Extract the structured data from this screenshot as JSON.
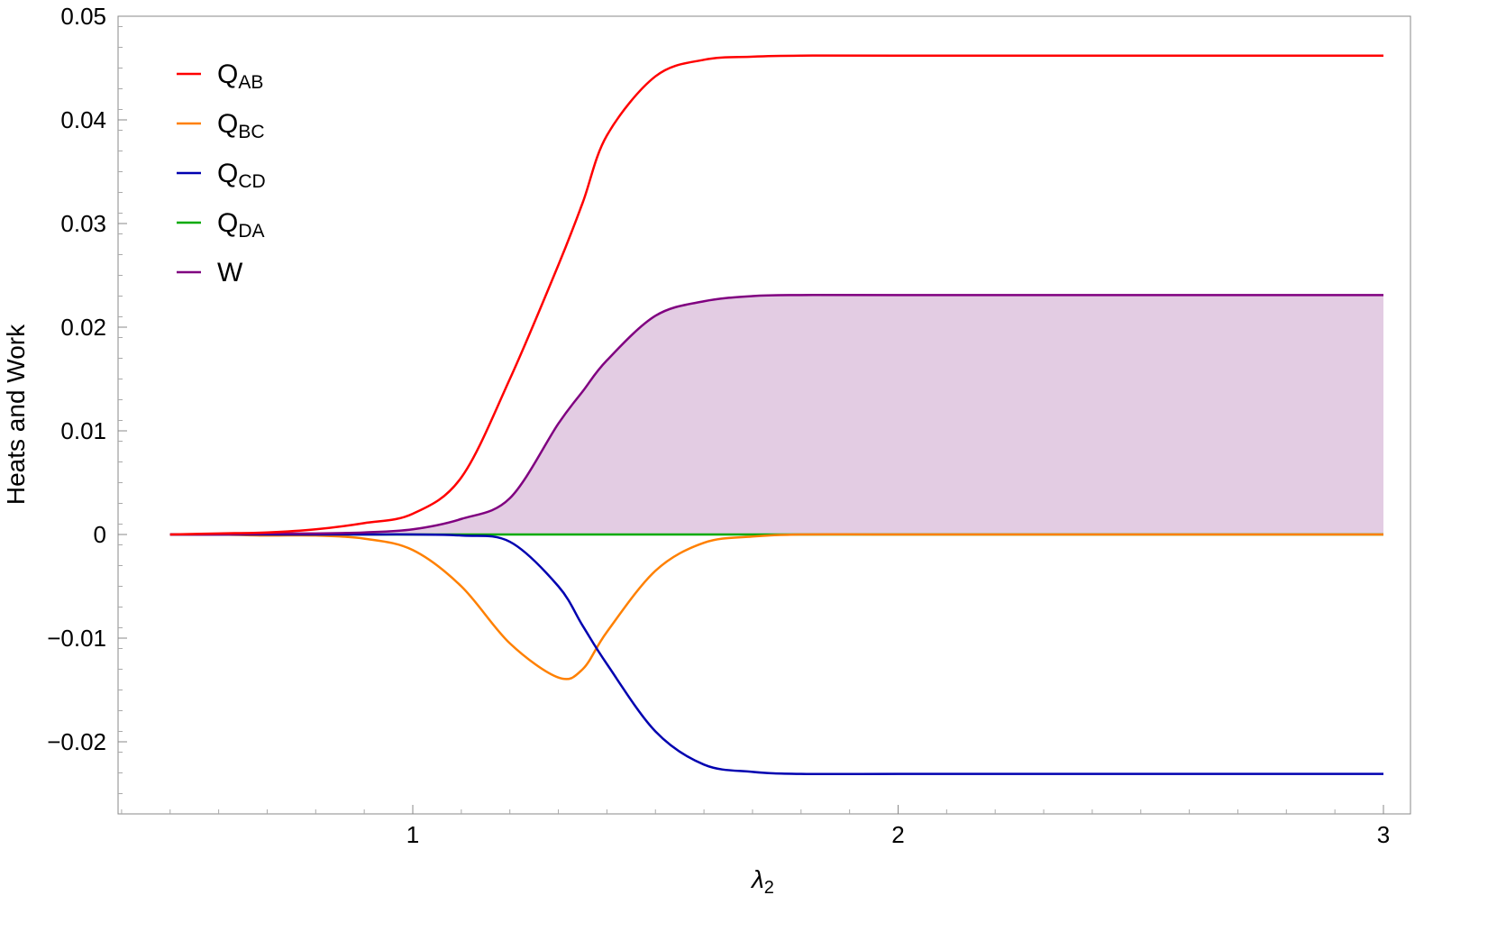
{
  "chart_data": {
    "type": "line",
    "xlabel": "λ",
    "xlabel_sub": "2",
    "ylabel": "Heats and Work",
    "xlim": [
      0.392,
      3.057
    ],
    "ylim": [
      -0.027,
      0.05
    ],
    "x_ticks": [
      1,
      2,
      3
    ],
    "x_tick_labels": [
      "1",
      "2",
      "3"
    ],
    "y_ticks": [
      -0.02,
      -0.01,
      0,
      0.01,
      0.02,
      0.03,
      0.04,
      0.05
    ],
    "y_tick_labels": [
      "−0.02",
      "−0.01",
      "0",
      "0.01",
      "0.02",
      "0.03",
      "0.04",
      "0.05"
    ],
    "grid": false,
    "legend_position": "top-left",
    "x": [
      0.5,
      0.6,
      0.7,
      0.8,
      0.9,
      1.0,
      1.1,
      1.2,
      1.3,
      1.35,
      1.4,
      1.5,
      1.6,
      1.7,
      1.8,
      2.0,
      2.5,
      3.0
    ],
    "series": [
      {
        "name": "Q",
        "sub": "AB",
        "color": "#ff0000",
        "values": [
          0,
          0.0001,
          0.0002,
          0.0005,
          0.0011,
          0.002,
          0.0055,
          0.015,
          0.026,
          0.032,
          0.0385,
          0.0442,
          0.0458,
          0.0461,
          0.0462,
          0.0462,
          0.0462,
          0.0462
        ]
      },
      {
        "name": "Q",
        "sub": "BC",
        "color": "#ff8000",
        "values": [
          0,
          0,
          -0.0001,
          -0.0001,
          -0.0004,
          -0.0015,
          -0.005,
          -0.0105,
          -0.0138,
          -0.013,
          -0.0094,
          -0.0035,
          -0.0008,
          -0.0002,
          0,
          0,
          0,
          0
        ]
      },
      {
        "name": "Q",
        "sub": "CD",
        "color": "#0000b0",
        "values": [
          0,
          0,
          0,
          0,
          0,
          0,
          -0.0001,
          -0.0007,
          -0.005,
          -0.0088,
          -0.0125,
          -0.019,
          -0.0222,
          -0.0229,
          -0.0231,
          -0.0231,
          -0.0231,
          -0.0231
        ]
      },
      {
        "name": "Q",
        "sub": "DA",
        "color": "#00aa00",
        "values": [
          0,
          0,
          0,
          0,
          0,
          0,
          0,
          0,
          0,
          0,
          0,
          0,
          0,
          0,
          0,
          0,
          0,
          0
        ]
      },
      {
        "name": "W",
        "sub": "",
        "color": "#800080",
        "fill": "#e3cce3",
        "values": [
          0,
          0,
          0.0001,
          0.0001,
          0.0002,
          0.0005,
          0.0015,
          0.0035,
          0.0107,
          0.0138,
          0.0168,
          0.0211,
          0.0225,
          0.023,
          0.0231,
          0.0231,
          0.0231,
          0.0231
        ]
      }
    ]
  }
}
